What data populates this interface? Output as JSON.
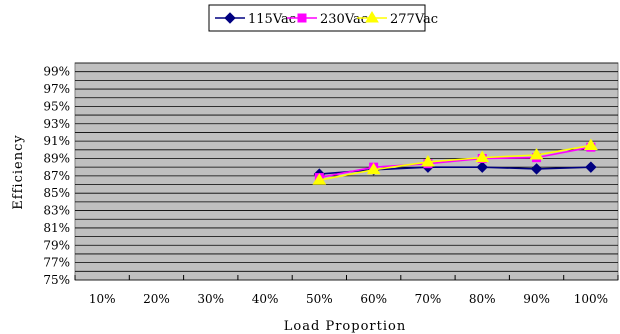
{
  "chart_data": {
    "type": "line",
    "title": "",
    "xlabel": "Load Proportion",
    "ylabel": "Efficiency",
    "categories": [
      "10%",
      "20%",
      "30%",
      "40%",
      "50%",
      "60%",
      "70%",
      "80%",
      "90%",
      "100%"
    ],
    "y_ticks": [
      "75%",
      "77%",
      "79%",
      "81%",
      "83%",
      "85%",
      "87%",
      "89%",
      "91%",
      "93%",
      "95%",
      "97%",
      "99%"
    ],
    "ylim": [
      75,
      100
    ],
    "y_tick_step": 2,
    "grid": "horizontal",
    "legend_position": "top",
    "plot_background": "#c0c0c0",
    "series": [
      {
        "name": "115Vac",
        "color": "#000080",
        "marker": "diamond",
        "values": [
          null,
          null,
          null,
          null,
          87.2,
          87.7,
          88.0,
          88.0,
          87.8,
          88.0
        ]
      },
      {
        "name": "230Vac",
        "color": "#ff00ff",
        "marker": "square",
        "values": [
          null,
          null,
          null,
          null,
          86.8,
          88.0,
          88.4,
          89.0,
          89.1,
          90.3
        ]
      },
      {
        "name": "277Vac",
        "color": "#ffff00",
        "marker": "triangle",
        "values": [
          null,
          null,
          null,
          null,
          86.5,
          87.7,
          88.6,
          89.1,
          89.4,
          90.5
        ]
      }
    ]
  }
}
